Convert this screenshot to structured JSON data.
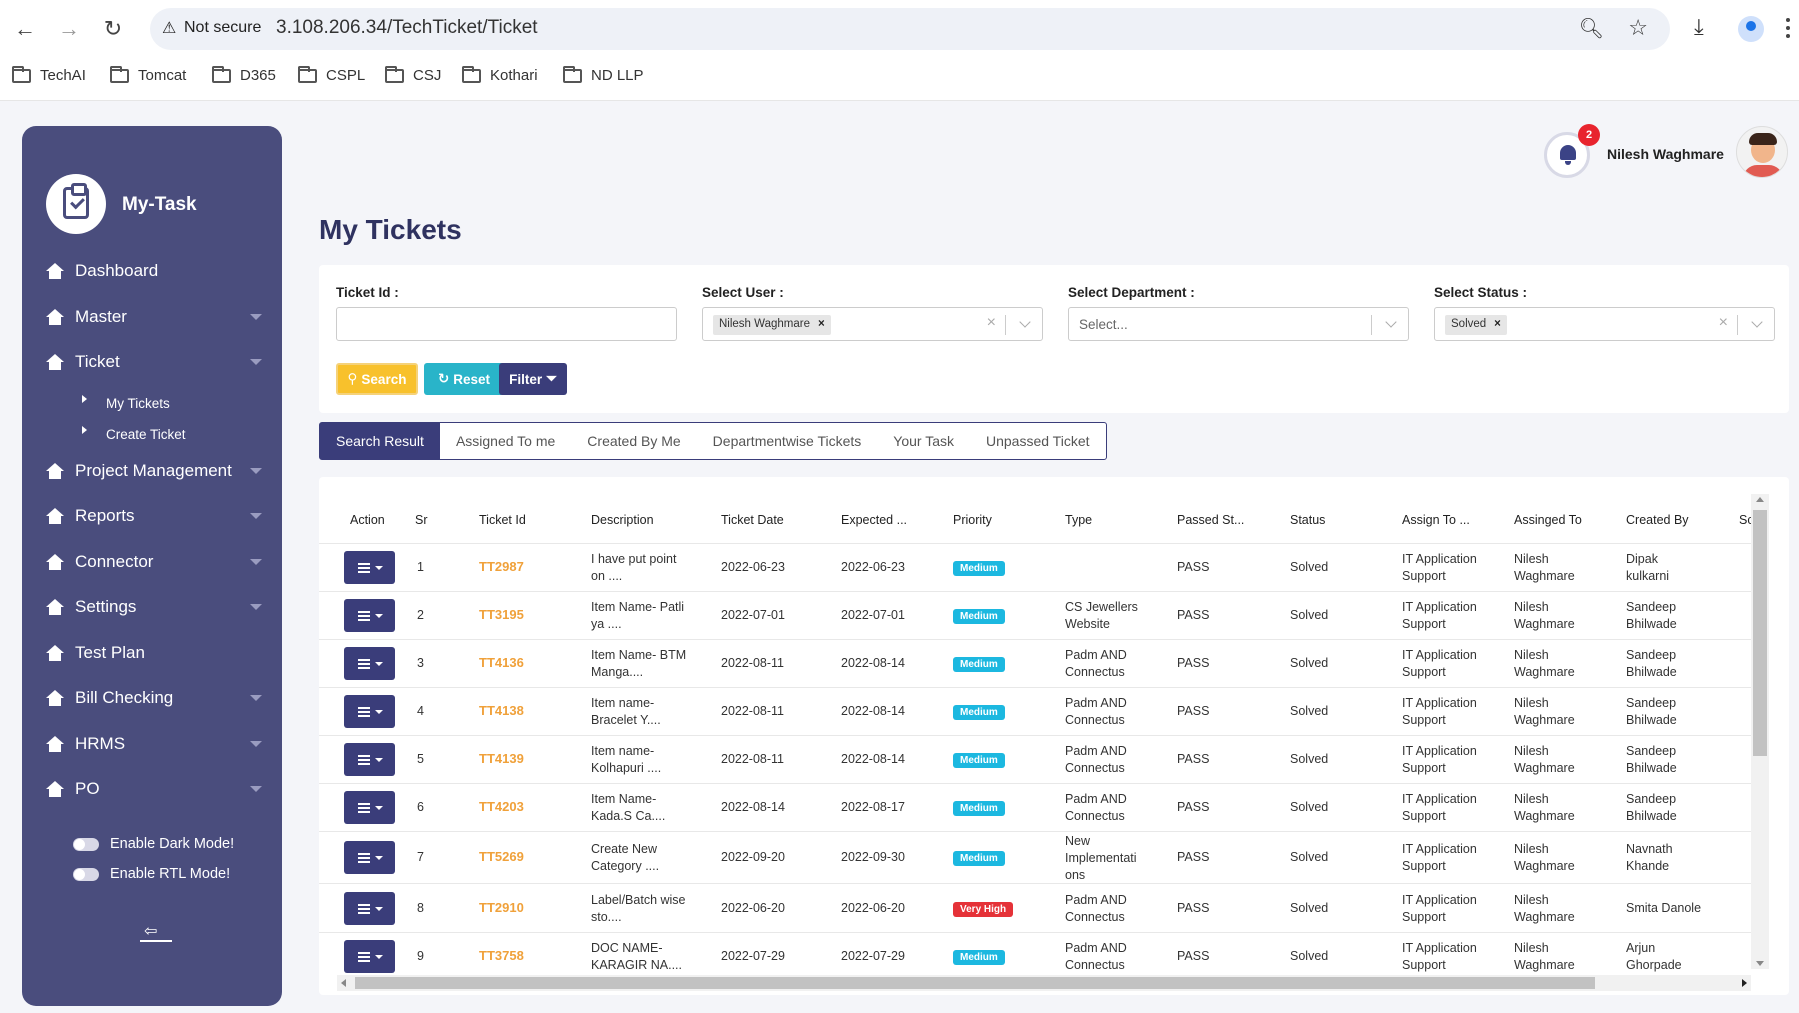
{
  "browser": {
    "security_label": "Not secure",
    "url": "3.108.206.34/TechTicket/Ticket",
    "bookmarks": [
      "TechAI",
      "Tomcat",
      "D365",
      "CSPL",
      "CSJ",
      "Kothari",
      "ND LLP"
    ]
  },
  "sidebar": {
    "brand": "My-Task",
    "items": [
      {
        "label": "Dashboard"
      },
      {
        "label": "Master"
      },
      {
        "label": "Ticket"
      },
      {
        "label": "Project Management"
      },
      {
        "label": "Reports"
      },
      {
        "label": "Connector"
      },
      {
        "label": "Settings"
      },
      {
        "label": "Test Plan"
      },
      {
        "label": "Bill Checking"
      },
      {
        "label": "HRMS"
      },
      {
        "label": "PO"
      }
    ],
    "ticket_sub": [
      "My Tickets",
      "Create Ticket"
    ],
    "dark_mode_label": "Enable Dark Mode!",
    "rtl_mode_label": "Enable RTL Mode!"
  },
  "header": {
    "notification_count": "2",
    "user_name": "Nilesh Waghmare"
  },
  "page": {
    "title": "My Tickets"
  },
  "filters": {
    "ticket_id_label": "Ticket Id :",
    "ticket_id_value": "",
    "user_label": "Select User :",
    "user_selected": "Nilesh Waghmare",
    "department_label": "Select Department :",
    "department_placeholder": "Select...",
    "status_label": "Select Status :",
    "status_selected": "Solved",
    "search_label": "Search",
    "reset_label": "Reset",
    "filter_label": "Filter"
  },
  "tabs": [
    "Search Result",
    "Assigned To me",
    "Created By Me",
    "Departmentwise Tickets",
    "Your Task",
    "Unpassed Ticket"
  ],
  "table": {
    "headers": [
      "Action",
      "Sr",
      "Ticket Id",
      "Description",
      "Ticket Date",
      "Expected ...",
      "Priority",
      "Type",
      "Passed St...",
      "Status",
      "Assign To ...",
      "Assinged To",
      "Created By",
      "Sc"
    ],
    "rows": [
      {
        "sr": "1",
        "id": "TT2987",
        "desc1": "I have put point",
        "desc2": "on ....",
        "date": "2022-06-23",
        "expected": "2022-06-23",
        "priority": "Medium",
        "type1": "",
        "type2": "",
        "type3": "",
        "passed": "PASS",
        "status": "Solved",
        "assign1": "IT Application",
        "assign2": "Support",
        "assigned1": "Nilesh",
        "assigned2": "Waghmare",
        "created1": "Dipak",
        "created2": "kulkarni"
      },
      {
        "sr": "2",
        "id": "TT3195",
        "desc1": "Item Name- Patli",
        "desc2": "ya ....",
        "date": "2022-07-01",
        "expected": "2022-07-01",
        "priority": "Medium",
        "type1": "CS Jewellers",
        "type2": "Website",
        "type3": "",
        "passed": "PASS",
        "status": "Solved",
        "assign1": "IT Application",
        "assign2": "Support",
        "assigned1": "Nilesh",
        "assigned2": "Waghmare",
        "created1": "Sandeep",
        "created2": "Bhilwade"
      },
      {
        "sr": "3",
        "id": "TT4136",
        "desc1": "Item Name- BTM",
        "desc2": "Manga....",
        "date": "2022-08-11",
        "expected": "2022-08-14",
        "priority": "Medium",
        "type1": "Padm AND",
        "type2": "Connectus",
        "type3": "",
        "passed": "PASS",
        "status": "Solved",
        "assign1": "IT Application",
        "assign2": "Support",
        "assigned1": "Nilesh",
        "assigned2": "Waghmare",
        "created1": "Sandeep",
        "created2": "Bhilwade"
      },
      {
        "sr": "4",
        "id": "TT4138",
        "desc1": "Item name-",
        "desc2": "Bracelet Y....",
        "date": "2022-08-11",
        "expected": "2022-08-14",
        "priority": "Medium",
        "type1": "Padm AND",
        "type2": "Connectus",
        "type3": "",
        "passed": "PASS",
        "status": "Solved",
        "assign1": "IT Application",
        "assign2": "Support",
        "assigned1": "Nilesh",
        "assigned2": "Waghmare",
        "created1": "Sandeep",
        "created2": "Bhilwade"
      },
      {
        "sr": "5",
        "id": "TT4139",
        "desc1": "Item name-",
        "desc2": "Kolhapuri ....",
        "date": "2022-08-11",
        "expected": "2022-08-14",
        "priority": "Medium",
        "type1": "Padm AND",
        "type2": "Connectus",
        "type3": "",
        "passed": "PASS",
        "status": "Solved",
        "assign1": "IT Application",
        "assign2": "Support",
        "assigned1": "Nilesh",
        "assigned2": "Waghmare",
        "created1": "Sandeep",
        "created2": "Bhilwade"
      },
      {
        "sr": "6",
        "id": "TT4203",
        "desc1": "Item Name-",
        "desc2": "Kada.S Ca....",
        "date": "2022-08-14",
        "expected": "2022-08-17",
        "priority": "Medium",
        "type1": "Padm AND",
        "type2": "Connectus",
        "type3": "",
        "passed": "PASS",
        "status": "Solved",
        "assign1": "IT Application",
        "assign2": "Support",
        "assigned1": "Nilesh",
        "assigned2": "Waghmare",
        "created1": "Sandeep",
        "created2": "Bhilwade"
      },
      {
        "sr": "7",
        "id": "TT5269",
        "desc1": "Create New",
        "desc2": "Category ....",
        "date": "2022-09-20",
        "expected": "2022-09-30",
        "priority": "Medium",
        "type1": "New",
        "type2": "Implementati",
        "type3": "ons",
        "passed": "PASS",
        "status": "Solved",
        "assign1": "IT Application",
        "assign2": "Support",
        "assigned1": "Nilesh",
        "assigned2": "Waghmare",
        "created1": "Navnath",
        "created2": "Khande"
      },
      {
        "sr": "8",
        "id": "TT2910",
        "desc1": "Label/Batch wise",
        "desc2": "sto....",
        "date": "2022-06-20",
        "expected": "2022-06-20",
        "priority": "Very High",
        "type1": "Padm AND",
        "type2": "Connectus",
        "type3": "",
        "passed": "PASS",
        "status": "Solved",
        "assign1": "IT Application",
        "assign2": "Support",
        "assigned1": "Nilesh",
        "assigned2": "Waghmare",
        "created1": "Smita Danole",
        "created2": ""
      },
      {
        "sr": "9",
        "id": "TT3758",
        "desc1": "DOC NAME-",
        "desc2": "KARAGIR NA....",
        "date": "2022-07-29",
        "expected": "2022-07-29",
        "priority": "Medium",
        "type1": "Padm AND",
        "type2": "Connectus",
        "type3": "",
        "passed": "PASS",
        "status": "Solved",
        "assign1": "IT Application",
        "assign2": "Support",
        "assigned1": "Nilesh",
        "assigned2": "Waghmare",
        "created1": "Arjun",
        "created2": "Ghorpade"
      }
    ]
  }
}
